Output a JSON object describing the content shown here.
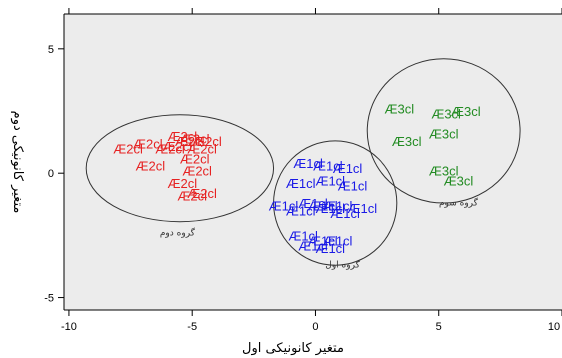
{
  "chart_data": {
    "type": "scatter",
    "title": "",
    "xlabel": "متغیر کانونیکی اول",
    "ylabel": "متغیر کانونیکی دوم",
    "xlim": [
      -10.2,
      10
    ],
    "ylim": [
      -5.5,
      6.4
    ],
    "x_ticks": [
      -10,
      -5,
      0,
      5,
      10
    ],
    "y_ticks": [
      -5,
      0,
      5
    ],
    "grid": false,
    "legend": "none",
    "colors": {
      "group1": "#1a1ae6",
      "group2": "#e62222",
      "group3": "#228b22"
    },
    "series": [
      {
        "name": "گروه اول",
        "point_label": "Æ1cl",
        "color": "#1a1ae6",
        "points": [
          {
            "x": -0.3,
            "y": 0.4
          },
          {
            "x": 0.5,
            "y": 0.3
          },
          {
            "x": 1.3,
            "y": 0.2
          },
          {
            "x": -0.6,
            "y": -0.4
          },
          {
            "x": 0.6,
            "y": -0.3
          },
          {
            "x": 1.5,
            "y": -0.5
          },
          {
            "x": -1.3,
            "y": -1.3
          },
          {
            "x": -0.1,
            "y": -1.2
          },
          {
            "x": 0.3,
            "y": -1.3
          },
          {
            "x": 0.6,
            "y": -1.4
          },
          {
            "x": 0.9,
            "y": -1.3
          },
          {
            "x": 1.9,
            "y": -1.4
          },
          {
            "x": -0.6,
            "y": -1.5
          },
          {
            "x": 1.2,
            "y": -1.6
          },
          {
            "x": -0.5,
            "y": -2.5
          },
          {
            "x": 0.3,
            "y": -2.7
          },
          {
            "x": 0.9,
            "y": -2.7
          },
          {
            "x": -0.1,
            "y": -2.9
          },
          {
            "x": 0.6,
            "y": -3.0
          }
        ]
      },
      {
        "name": "گروه دوم",
        "point_label": "Æ2cl",
        "color": "#e62222",
        "points": [
          {
            "x": -5.4,
            "y": 1.5
          },
          {
            "x": -4.9,
            "y": 1.4
          },
          {
            "x": -4.4,
            "y": 1.3
          },
          {
            "x": -5.1,
            "y": 1.3
          },
          {
            "x": -5.6,
            "y": 1.1
          },
          {
            "x": -4.6,
            "y": 1.0
          },
          {
            "x": -7.6,
            "y": 1.0
          },
          {
            "x": -6.8,
            "y": 1.2
          },
          {
            "x": -5.9,
            "y": 1.0
          },
          {
            "x": -4.9,
            "y": 0.6
          },
          {
            "x": -6.7,
            "y": 0.3
          },
          {
            "x": -4.8,
            "y": 0.1
          },
          {
            "x": -5.4,
            "y": -0.4
          },
          {
            "x": -5.0,
            "y": -0.9
          },
          {
            "x": -4.6,
            "y": -0.8
          }
        ]
      },
      {
        "name": "گروه سوم",
        "point_label": "Æ3cl",
        "color": "#228b22",
        "points": [
          {
            "x": 3.4,
            "y": 2.6
          },
          {
            "x": 5.3,
            "y": 2.4
          },
          {
            "x": 6.1,
            "y": 2.5
          },
          {
            "x": 3.7,
            "y": 1.3
          },
          {
            "x": 5.2,
            "y": 1.6
          },
          {
            "x": 5.2,
            "y": 0.1
          },
          {
            "x": 5.8,
            "y": -0.3
          }
        ]
      }
    ],
    "ellipses": [
      {
        "group": "گروه اول",
        "cx": 0.8,
        "cy": -1.2,
        "rx": 2.5,
        "ry": 2.5
      },
      {
        "group": "گروه دوم",
        "cx": -5.5,
        "cy": 0.2,
        "rx": 3.8,
        "ry": 2.15
      },
      {
        "group": "گروه سوم",
        "cx": 5.2,
        "cy": 1.7,
        "rx": 3.1,
        "ry": 2.9
      }
    ],
    "group_labels": [
      {
        "text": "گروه اول",
        "x": 1.1,
        "y": -3.8
      },
      {
        "text": "گروه دوم",
        "x": -5.6,
        "y": -2.5
      },
      {
        "text": "گروه سوم",
        "x": 5.8,
        "y": -1.3
      }
    ]
  }
}
